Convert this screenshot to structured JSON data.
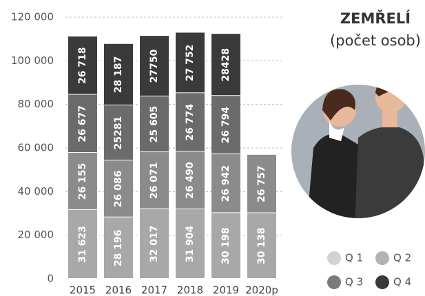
{
  "chart_data": {
    "type": "stacked-bar",
    "title": "ZEMŘELÍ",
    "subtitle": "(počet osob)",
    "categories": [
      "2015",
      "2016",
      "2017",
      "2018",
      "2019",
      "2020p"
    ],
    "series": [
      {
        "name": "Q 1",
        "color": "#a8a8a8",
        "legend_color": "#d2d2d2",
        "values": [
          31623,
          28196,
          32017,
          31904,
          30198,
          30138
        ],
        "value_labels": [
          "31 623",
          "28 196",
          "32 017",
          "31 904",
          "30 198",
          "30 138"
        ]
      },
      {
        "name": "Q 2",
        "color": "#8b8b8b",
        "legend_color": "#b3b3b3",
        "values": [
          26155,
          26086,
          26071,
          26490,
          26942,
          26757
        ],
        "value_labels": [
          "26 155",
          "26 086",
          "26 071",
          "26 490",
          "26 942",
          "26 757"
        ]
      },
      {
        "name": "Q 3",
        "color": "#6b6b6b",
        "legend_color": "#7a7a7a",
        "values": [
          26677,
          25281,
          25605,
          26774,
          26794,
          null
        ],
        "value_labels": [
          "26 677",
          "25281",
          "25 605",
          "26 774",
          "26 794",
          null
        ]
      },
      {
        "name": "Q 4",
        "color": "#3a3a3a",
        "legend_color": "#3a3a3a",
        "values": [
          26718,
          28187,
          27750,
          27752,
          28428,
          null
        ],
        "value_labels": [
          "26 718",
          "28 187",
          "27750",
          "27 752",
          "28428",
          null
        ]
      }
    ],
    "ylim": [
      0,
      120000
    ],
    "yticks": [
      0,
      {
        "value": 20000,
        "label": "20 000"
      },
      {
        "value": 40000,
        "label": "40 000"
      },
      {
        "value": 60000,
        "label": "60 000"
      },
      {
        "value": 80000,
        "label": "80 000"
      },
      {
        "value": 100000,
        "label": "100 000"
      },
      {
        "value": 120000,
        "label": "120 000"
      }
    ],
    "grid": true
  }
}
